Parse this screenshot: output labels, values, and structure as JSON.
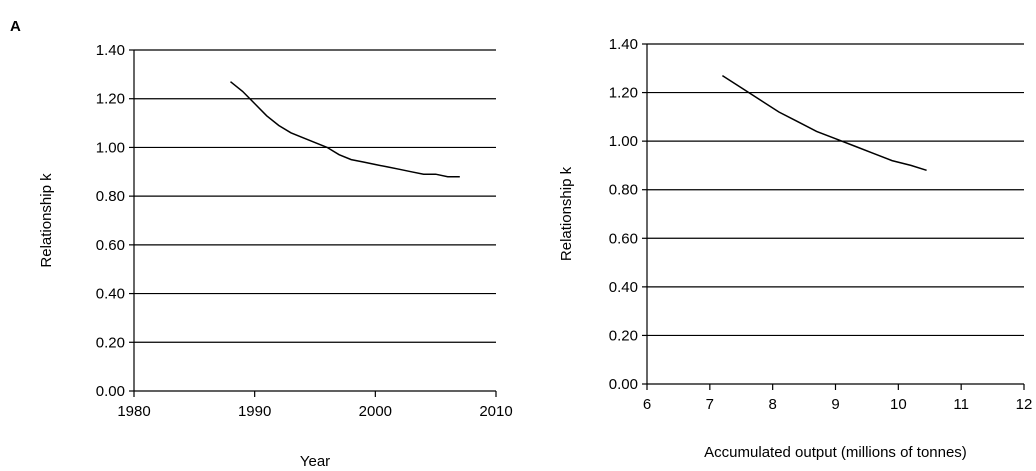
{
  "panel_label": "A",
  "chart_data": [
    {
      "type": "line",
      "title": "",
      "xlabel": "Year",
      "ylabel": "Relationship k",
      "xlim": [
        1980,
        2010
      ],
      "ylim": [
        0,
        1.4
      ],
      "xticks": [
        "1980",
        "1990",
        "2000",
        "2010"
      ],
      "yticks": [
        "0.00",
        "0.20",
        "0.40",
        "0.60",
        "0.80",
        "1.00",
        "1.20",
        "1.40"
      ],
      "grid": "horizontal",
      "legend": "none",
      "series": [
        {
          "x": [
            1988,
            1989,
            1990,
            1991,
            1992,
            1993,
            1994,
            1995,
            1996,
            1997,
            1998,
            1999,
            2000,
            2001,
            2002,
            2003,
            2004,
            2005,
            2006,
            2007
          ],
          "y": [
            1.27,
            1.23,
            1.18,
            1.13,
            1.09,
            1.06,
            1.04,
            1.02,
            1.0,
            0.97,
            0.95,
            0.94,
            0.93,
            0.92,
            0.91,
            0.9,
            0.89,
            0.89,
            0.88,
            0.88
          ]
        }
      ]
    },
    {
      "type": "line",
      "title": "",
      "xlabel": "Accumulated output (millions of tonnes)",
      "ylabel": "Relationship k",
      "xlim": [
        6,
        12
      ],
      "ylim": [
        0,
        1.4
      ],
      "xticks": [
        "6",
        "7",
        "8",
        "9",
        "10",
        "11",
        "12"
      ],
      "yticks": [
        "0.00",
        "0.20",
        "0.40",
        "0.60",
        "0.80",
        "1.00",
        "1.20",
        "1.40"
      ],
      "grid": "horizontal",
      "legend": "none",
      "series": [
        {
          "x": [
            7.2,
            7.5,
            7.8,
            8.1,
            8.4,
            8.7,
            9.0,
            9.3,
            9.6,
            9.9,
            10.2,
            10.45
          ],
          "y": [
            1.27,
            1.22,
            1.17,
            1.12,
            1.08,
            1.04,
            1.01,
            0.98,
            0.95,
            0.92,
            0.9,
            0.88
          ]
        }
      ]
    }
  ]
}
